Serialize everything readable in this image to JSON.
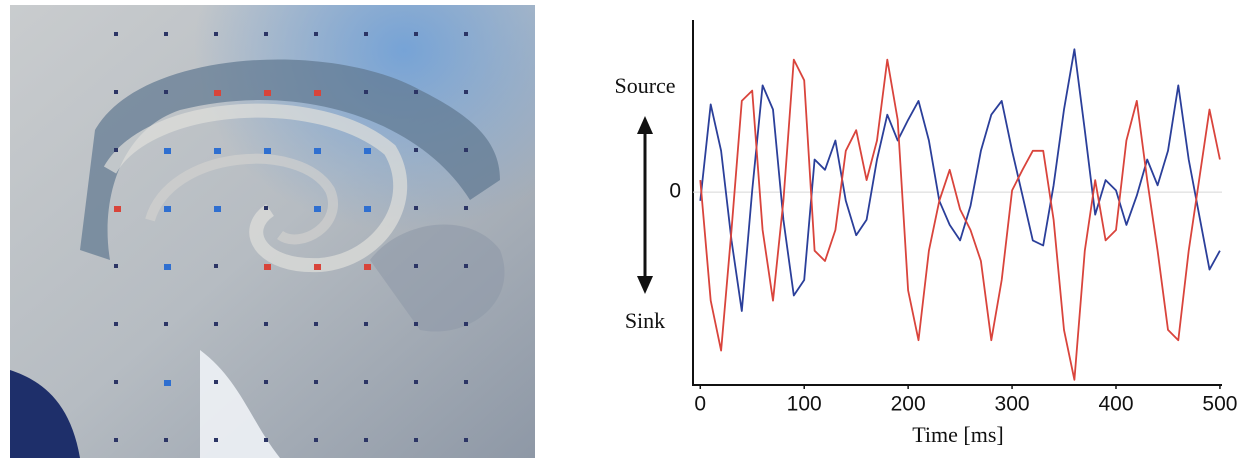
{
  "chart_data": {
    "type": "line",
    "xlabel": "Time [ms]",
    "annotations": [
      "Source",
      "Sink"
    ],
    "x": [
      0,
      10,
      20,
      30,
      40,
      50,
      60,
      70,
      80,
      90,
      100,
      110,
      120,
      130,
      140,
      150,
      160,
      170,
      180,
      190,
      200,
      210,
      220,
      230,
      240,
      250,
      260,
      270,
      280,
      290,
      300,
      310,
      320,
      330,
      340,
      350,
      360,
      370,
      380,
      390,
      400,
      410,
      420,
      430,
      440,
      450,
      460,
      470,
      480,
      490,
      500
    ],
    "series": [
      {
        "color": "#2b3f9a",
        "values": [
          -0.05,
          0.51,
          0.24,
          -0.28,
          -0.69,
          0.01,
          0.62,
          0.48,
          -0.16,
          -0.6,
          -0.51,
          0.19,
          0.13,
          0.3,
          -0.05,
          -0.25,
          -0.16,
          0.19,
          0.45,
          0.3,
          0.42,
          0.53,
          0.3,
          -0.05,
          -0.19,
          -0.28,
          -0.08,
          0.24,
          0.45,
          0.53,
          0.24,
          -0.02,
          -0.28,
          -0.31,
          0.04,
          0.48,
          0.83,
          0.36,
          -0.13,
          0.07,
          0.01,
          -0.19,
          -0.02,
          0.19,
          0.04,
          0.24,
          0.62,
          0.19,
          -0.13,
          -0.45,
          -0.34
        ]
      },
      {
        "color": "#d9443c",
        "values": [
          0.07,
          -0.63,
          -0.92,
          -0.22,
          0.53,
          0.59,
          -0.22,
          -0.63,
          -0.05,
          0.77,
          0.65,
          -0.34,
          -0.4,
          -0.22,
          0.24,
          0.36,
          0.07,
          0.3,
          0.77,
          0.42,
          -0.57,
          -0.86,
          -0.34,
          -0.05,
          0.13,
          -0.1,
          -0.22,
          -0.4,
          -0.86,
          -0.51,
          0.01,
          0.13,
          0.24,
          0.24,
          -0.16,
          -0.8,
          -1.09,
          -0.34,
          0.07,
          -0.28,
          -0.22,
          0.3,
          0.53,
          0.07,
          -0.34,
          -0.8,
          -0.86,
          -0.34,
          0.07,
          0.48,
          0.19
        ]
      }
    ],
    "xlim": [
      -7,
      502
    ],
    "xticks": [
      0,
      100,
      200,
      300,
      400,
      500
    ],
    "ylim": [
      -1.12,
      1
    ],
    "yticks": [
      0
    ]
  }
}
